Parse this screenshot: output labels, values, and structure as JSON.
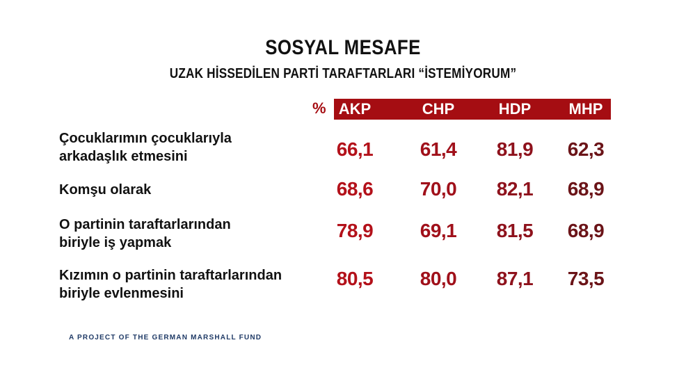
{
  "title": "SOSYAL MESAFE",
  "subtitle": "UZAK HİSSEDİLEN PARTİ TARAFTARLARI  “İSTEMİYORUM”",
  "percent_sign": "%",
  "footer": "A PROJECT OF THE GERMAN MARSHALL FUND",
  "colors": {
    "header_bg": "#a50d12",
    "akp": "#b3111a",
    "chp": "#a0101a",
    "hdp": "#8e121c",
    "mhp": "#6b1418"
  },
  "chart_data": {
    "type": "table",
    "title": "SOSYAL MESAFE",
    "subtitle": "UZAK HİSSEDİLEN PARTİ TARAFTARLARI  “İSTEMİYORUM”",
    "unit": "%",
    "columns": [
      "AKP",
      "CHP",
      "HDP",
      "MHP"
    ],
    "rows": [
      {
        "label": [
          "Çocuklarımın çocuklarıyla",
          "arkadaşlık etmesini"
        ],
        "values": [
          "66,1",
          "61,4",
          "81,9",
          "62,3"
        ]
      },
      {
        "label": [
          "Komşu olarak"
        ],
        "values": [
          "68,6",
          "70,0",
          "82,1",
          "68,9"
        ]
      },
      {
        "label": [
          "O partinin taraftarlarından",
          "biriyle iş yapmak"
        ],
        "values": [
          "78,9",
          "69,1",
          "81,5",
          "68,9"
        ]
      },
      {
        "label": [
          "Kızımın o partinin taraftarlarından",
          "biriyle evlenmesini"
        ],
        "values": [
          "80,5",
          "80,0",
          "87,1",
          "73,5"
        ]
      }
    ]
  }
}
